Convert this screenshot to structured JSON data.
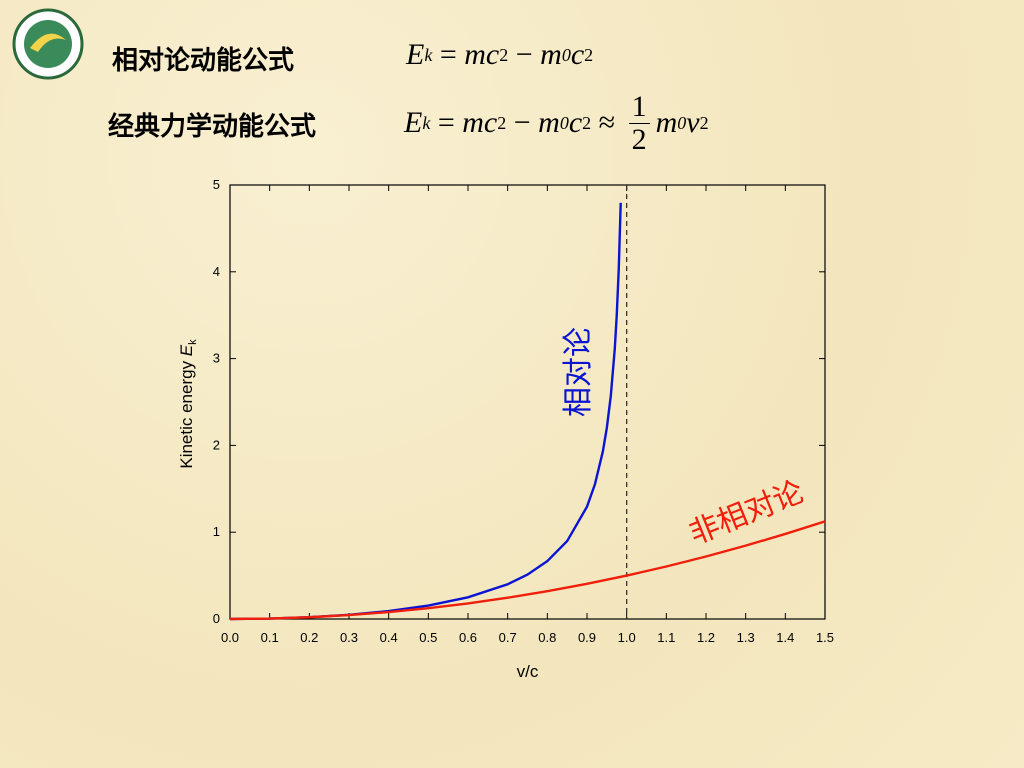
{
  "header": {
    "line1": "相对论动能公式",
    "line2": "经典力学动能公式",
    "formula1": [
      {
        "text": "E",
        "sub": "k"
      },
      {
        "text": " = ",
        "plain": true
      },
      {
        "text": "mc",
        "sup": "2"
      },
      {
        "text": " − ",
        "plain": true
      },
      {
        "text": "m",
        "sub": "0"
      },
      {
        "text": "c",
        "sup": "2"
      }
    ],
    "formula2": [
      {
        "text": "E",
        "sub": "k"
      },
      {
        "text": " = ",
        "plain": true
      },
      {
        "text": "mc",
        "sup": "2"
      },
      {
        "text": " − ",
        "plain": true
      },
      {
        "text": "m",
        "sub": "0"
      },
      {
        "text": "c",
        "sup": "2"
      },
      {
        "text": " ≈ ",
        "plain": true
      },
      {
        "num": "1",
        "den": "2"
      },
      {
        "text": "m",
        "sub": "0"
      },
      {
        "text": "v",
        "sup": "2"
      }
    ]
  },
  "chart_data": {
    "type": "line",
    "x_label": "v/c",
    "y_label": {
      "text": "Kinetic energy ",
      "symbol": "E",
      "sub": "k"
    },
    "xlim": [
      0,
      1.5
    ],
    "ylim": [
      0,
      5
    ],
    "xticks": [
      {
        "value": 0,
        "label": "0.0"
      },
      0.1,
      0.2,
      0.3,
      0.4,
      0.5,
      0.6,
      0.7,
      0.8,
      0.9,
      {
        "value": 1,
        "label": "1.0"
      },
      1.1,
      1.2,
      1.3,
      1.4,
      1.5
    ],
    "yticks": [
      0,
      1,
      2,
      3,
      4,
      5
    ],
    "vline": 1,
    "vline_color": "#333333",
    "series": [
      {
        "name": "相对论",
        "color": "#0a14d2",
        "x": [
          0,
          0.1,
          0.2,
          0.3,
          0.4,
          0.5,
          0.6,
          0.7,
          0.75,
          0.8,
          0.85,
          0.9,
          0.92,
          0.94,
          0.95,
          0.96,
          0.97,
          0.975,
          0.98,
          0.985
        ],
        "values": [
          0,
          0.005,
          0.021,
          0.048,
          0.091,
          0.155,
          0.25,
          0.4,
          0.512,
          0.667,
          0.898,
          1.294,
          1.552,
          1.931,
          2.203,
          2.571,
          3.113,
          3.5,
          4.025,
          4.795
        ]
      },
      {
        "name": "非相对论",
        "color": "#f01e0a",
        "x": [
          0,
          0.1,
          0.2,
          0.3,
          0.4,
          0.5,
          0.6,
          0.7,
          0.8,
          0.9,
          1,
          1.1,
          1.2,
          1.3,
          1.4,
          1.5
        ],
        "values": [
          0,
          0.005,
          0.02,
          0.045,
          0.08,
          0.125,
          0.18,
          0.245,
          0.32,
          0.405,
          0.5,
          0.605,
          0.72,
          0.845,
          0.98,
          1.125
        ]
      }
    ]
  }
}
